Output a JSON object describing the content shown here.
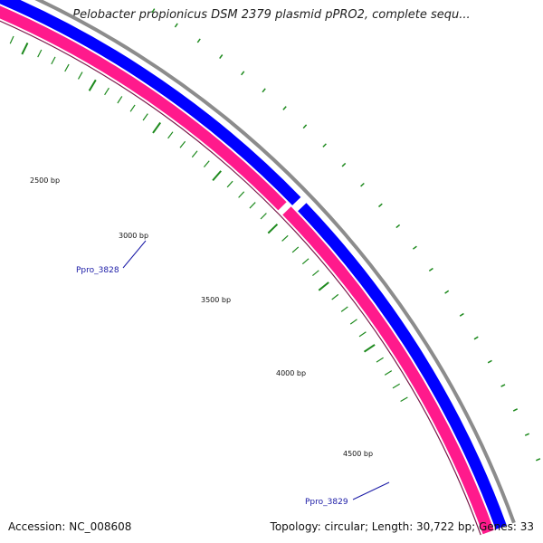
{
  "title": "Pelobacter propionicus DSM 2379 plasmid pPRO2, complete sequ...",
  "footer": {
    "accession": "Accession: NC_008608",
    "summary": "Topology: circular; Length: 30,722 bp; Genes: 33"
  },
  "map": {
    "tick_labels": [
      "2500 bp",
      "3000 bp",
      "3500 bp",
      "4000 bp",
      "4500 bp"
    ],
    "genes": [
      {
        "name": "Ppro_3828",
        "strand": "reverse"
      },
      {
        "name": "Ppro_3829",
        "strand": "reverse"
      }
    ],
    "colors": {
      "backbone": "#8c8c8c",
      "forward_strand": "#0000ff",
      "reverse_strand": "#ff1a8c",
      "ticks": "#1e8a1e",
      "gene_label": "#1a1aa6"
    }
  }
}
